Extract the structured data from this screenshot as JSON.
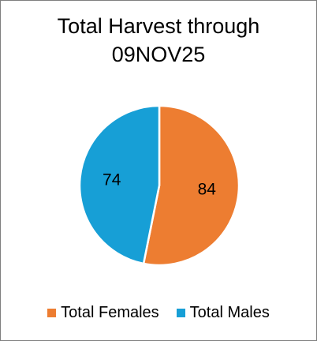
{
  "chart_data": {
    "type": "pie",
    "title_line1": "Total Harvest through",
    "title_line2": "09NOV25",
    "slices": [
      {
        "label": "Total Females",
        "value": 84,
        "color": "#ED7D31"
      },
      {
        "label": "Total Males",
        "value": 74,
        "color": "#179FD6"
      }
    ],
    "legend_position": "bottom",
    "start_angle": "12 o'clock, clockwise"
  }
}
